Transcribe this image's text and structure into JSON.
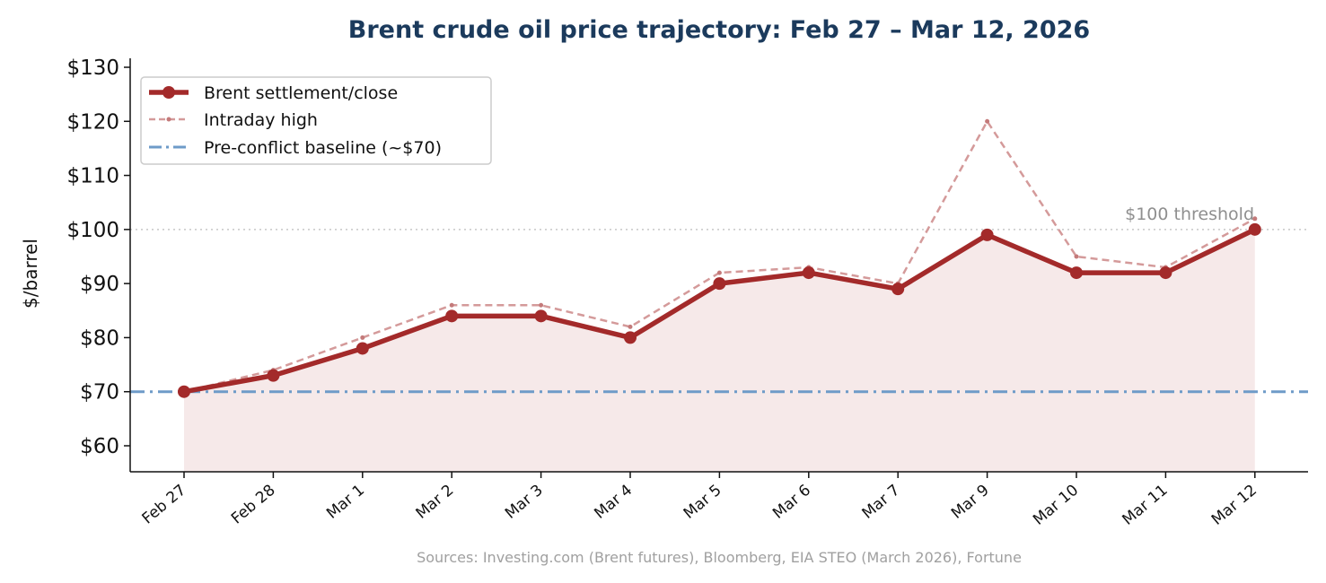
{
  "chart_data": {
    "type": "line",
    "title": "Brent crude oil price trajectory: Feb 27 – Mar 12, 2026",
    "ylabel": "$/barrel",
    "xlabel": "",
    "ylim": [
      55,
      130
    ],
    "yticks": [
      60,
      70,
      80,
      90,
      100,
      110,
      120,
      130
    ],
    "ytick_labels": [
      "$60",
      "$70",
      "$80",
      "$90",
      "$100",
      "$110",
      "$120",
      "$130"
    ],
    "categories": [
      "Feb 27",
      "Feb 28",
      "Mar 1",
      "Mar 2",
      "Mar 3",
      "Mar 4",
      "Mar 5",
      "Mar 6",
      "Mar 7",
      "Mar 9",
      "Mar 10",
      "Mar 11",
      "Mar 12"
    ],
    "series": [
      {
        "name": "Brent settlement/close",
        "values": [
          70,
          73,
          78,
          84,
          84,
          80,
          90,
          92,
          89,
          99,
          92,
          92,
          100
        ],
        "color": "#a32a2a",
        "style": "solid",
        "area_fill": "#f6e9e9"
      },
      {
        "name": "Intraday high",
        "values": [
          70,
          74,
          80,
          86,
          86,
          82,
          92,
          93,
          90,
          120,
          95,
          93,
          102
        ],
        "color": "#d49a9a",
        "style": "dashed"
      },
      {
        "name": "Pre-conflict baseline (~$70)",
        "values": [
          70,
          70,
          70,
          70,
          70,
          70,
          70,
          70,
          70,
          70,
          70,
          70,
          70
        ],
        "color": "#6e9bc8",
        "style": "dashdot"
      }
    ],
    "reference_lines": [
      {
        "y": 100,
        "label": "$100 threshold",
        "color": "#c8c8c8",
        "style": "dotted"
      }
    ],
    "legend_position": "top-left",
    "grid": false,
    "source": "Sources: Investing.com (Brent futures), Bloomberg, EIA STEO (March 2026), Fortune"
  }
}
